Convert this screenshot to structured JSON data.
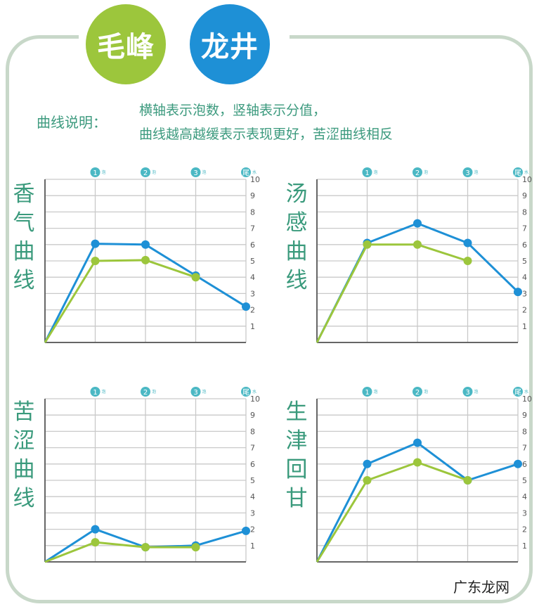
{
  "header": {
    "badge_left": "毛峰",
    "badge_right": "龙井"
  },
  "legend_note": {
    "label": "曲线说明：",
    "line1": "横轴表示泡数，竖轴表示分值，",
    "line2": "曲线越高越缓表示表现更好，苦涩曲线相反"
  },
  "colors": {
    "maofeng": "#9cc63c",
    "longjing": "#1e90d6",
    "grid": "#c9c9c9",
    "axis": "#666666",
    "title_text": "#3a9a7c",
    "frame": "#c8d8c9"
  },
  "x_ticks": [
    "1",
    "2",
    "3",
    "尾"
  ],
  "x_tick_suffixes": [
    "泡",
    "泡",
    "泡",
    "水"
  ],
  "y_ticks": [
    "1",
    "2",
    "3",
    "4",
    "5",
    "6",
    "7",
    "8",
    "9",
    "10"
  ],
  "chart_data": [
    {
      "type": "line",
      "title": "香气曲线",
      "x": [
        0,
        1,
        2,
        3,
        4
      ],
      "ylim": [
        0,
        10
      ],
      "series": [
        {
          "name": "毛峰",
          "values": [
            0,
            5.0,
            5.05,
            4.0,
            null
          ],
          "color": "#9cc63c"
        },
        {
          "name": "龙井",
          "values": [
            0,
            6.05,
            6.0,
            4.1,
            2.2
          ],
          "color": "#1e90d6"
        }
      ]
    },
    {
      "type": "line",
      "title": "汤感曲线",
      "x": [
        0,
        1,
        2,
        3,
        4
      ],
      "ylim": [
        0,
        10
      ],
      "series": [
        {
          "name": "毛峰",
          "values": [
            0,
            6.0,
            6.0,
            5.0,
            null
          ],
          "color": "#9cc63c"
        },
        {
          "name": "龙井",
          "values": [
            0,
            6.1,
            7.3,
            6.1,
            3.1
          ],
          "color": "#1e90d6"
        }
      ]
    },
    {
      "type": "line",
      "title": "苦涩曲线",
      "x": [
        0,
        1,
        2,
        3,
        4
      ],
      "ylim": [
        0,
        10
      ],
      "series": [
        {
          "name": "毛峰",
          "values": [
            0,
            1.2,
            0.9,
            0.9,
            null
          ],
          "color": "#9cc63c"
        },
        {
          "name": "龙井",
          "values": [
            0,
            2.0,
            0.9,
            1.0,
            1.9
          ],
          "color": "#1e90d6"
        }
      ]
    },
    {
      "type": "line",
      "title": "生津回甘",
      "x": [
        0,
        1,
        2,
        3,
        4
      ],
      "ylim": [
        0,
        10
      ],
      "series": [
        {
          "name": "毛峰",
          "values": [
            0,
            5.0,
            6.1,
            5.0,
            null
          ],
          "color": "#9cc63c"
        },
        {
          "name": "龙井",
          "values": [
            0,
            6.0,
            7.3,
            5.0,
            6.0
          ],
          "color": "#1e90d6"
        }
      ]
    }
  ],
  "watermark": "广东龙网"
}
